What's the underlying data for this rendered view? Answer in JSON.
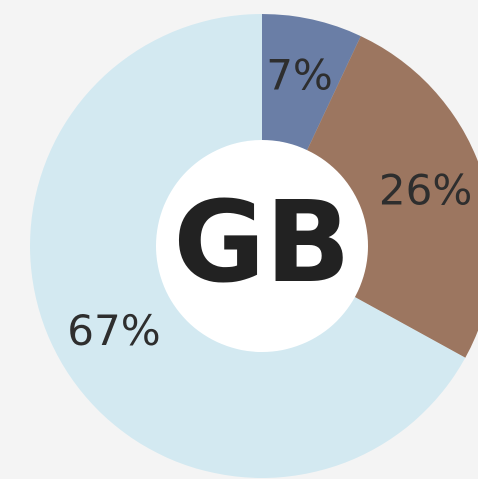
{
  "chart_data": {
    "type": "pie",
    "donut": true,
    "center_label": "GB",
    "values": [
      7,
      26,
      67
    ],
    "value_labels": [
      "7%",
      "26%",
      "67%"
    ],
    "colors": [
      "#6a7ea6",
      "#9c7660",
      "#d3e9f1"
    ]
  }
}
